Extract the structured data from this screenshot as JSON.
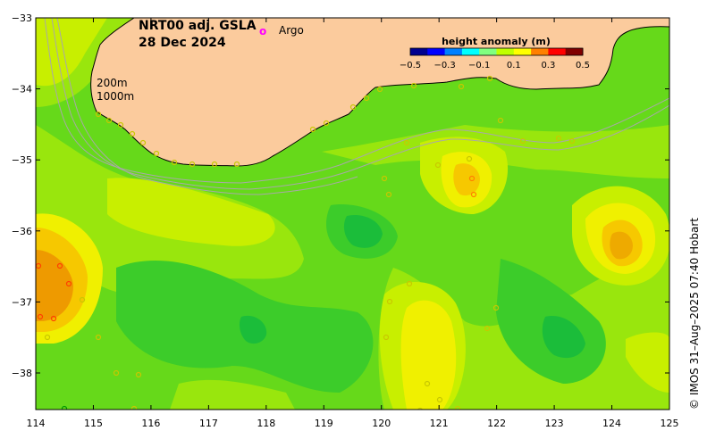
{
  "title": {
    "product": "NRT00 adj. GSLA",
    "date": "28 Dec 2024"
  },
  "legend": {
    "marker_symbol": "o",
    "argo_label": "Argo",
    "argo_color": "#ff00ff"
  },
  "isobaths": {
    "shallow": "200m",
    "deep": "1000m"
  },
  "colorbar": {
    "title": "height anomaly (m)",
    "ticks": [
      "−0.5",
      "−0.3",
      "−0.1",
      "0.1",
      "0.3",
      "0.5"
    ],
    "colors": [
      "#00008f",
      "#0000ff",
      "#0080ff",
      "#00ffff",
      "#80ff80",
      "#c0ff00",
      "#ffff00",
      "#ff8000",
      "#ff0000",
      "#800000"
    ]
  },
  "axes": {
    "x_ticks": [
      "114",
      "115",
      "116",
      "117",
      "118",
      "119",
      "120",
      "121",
      "122",
      "123",
      "124",
      "125"
    ],
    "y_ticks": [
      "−33",
      "−34",
      "−35",
      "−36",
      "−37",
      "−38"
    ]
  },
  "credit": "© IMOS 31–Aug–2025 07:40 Hobart",
  "colors": {
    "land": "#fbcb9d",
    "sea_base": "#66d91a",
    "coast": "#000000",
    "isobath": "#a8a8a8"
  }
}
